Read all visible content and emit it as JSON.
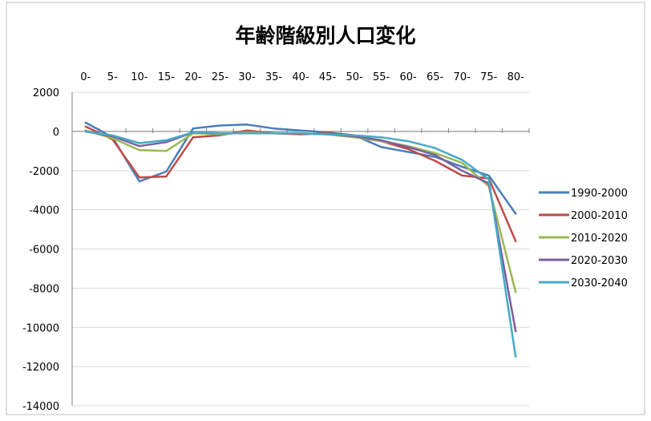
{
  "chart_data": {
    "type": "line",
    "title": "年齢階級別人口変化",
    "xlabel": "",
    "ylabel": "",
    "categories": [
      "0-",
      "5-",
      "10-",
      "15-",
      "20-",
      "25-",
      "30-",
      "35-",
      "40-",
      "45-",
      "50-",
      "55-",
      "60-",
      "65-",
      "70-",
      "75-",
      "80-"
    ],
    "ylim": [
      -14000,
      2000
    ],
    "yticks": [
      "2000",
      "0",
      "-2000",
      "-4000",
      "-6000",
      "-8000",
      "-10000",
      "-12000",
      "-14000"
    ],
    "yticks_values": [
      2000,
      0,
      -2000,
      -4000,
      -6000,
      -8000,
      -10000,
      -12000,
      -14000
    ],
    "grid": true,
    "legend_position": "right",
    "series": [
      {
        "name": "1990-2000",
        "color": "#4A7EBB",
        "values": [
          450,
          -300,
          -2550,
          -2050,
          150,
          300,
          350,
          150,
          50,
          -50,
          -200,
          -800,
          -1050,
          -1300,
          -1800,
          -2250,
          -4200
        ]
      },
      {
        "name": "2000-2010",
        "color": "#BE4B48",
        "values": [
          250,
          -400,
          -2350,
          -2300,
          -300,
          -200,
          50,
          -100,
          -150,
          -100,
          -200,
          -500,
          -900,
          -1500,
          -2250,
          -2400,
          -5600
        ]
      },
      {
        "name": "2010-2020",
        "color": "#98B954",
        "values": [
          50,
          -350,
          -950,
          -1000,
          -100,
          -150,
          -50,
          -100,
          -100,
          -150,
          -300,
          -500,
          -750,
          -1100,
          -1600,
          -2800,
          -8200
        ]
      },
      {
        "name": "2020-2030",
        "color": "#7D5FA0",
        "values": [
          0,
          -250,
          -750,
          -550,
          -50,
          -100,
          -100,
          -100,
          -100,
          -150,
          -250,
          -450,
          -800,
          -1200,
          -2000,
          -2650,
          -10200
        ]
      },
      {
        "name": "2030-2040",
        "color": "#46AAC5",
        "values": [
          0,
          -200,
          -600,
          -450,
          -50,
          -100,
          -100,
          -100,
          -100,
          -150,
          -200,
          -300,
          -500,
          -850,
          -1450,
          -2450,
          -11500
        ]
      }
    ]
  }
}
